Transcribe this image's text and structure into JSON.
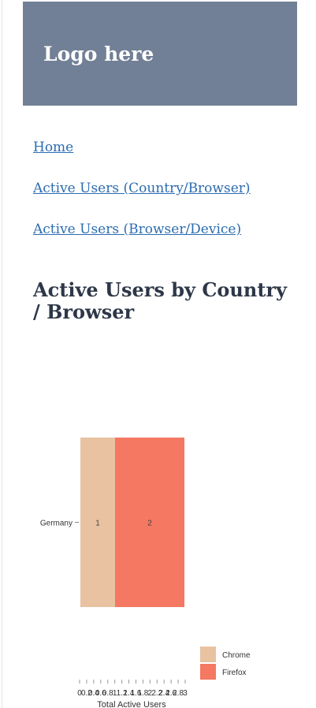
{
  "header": {
    "logo_text": "Logo here"
  },
  "nav": {
    "items": [
      {
        "label": "Home"
      },
      {
        "label": "Active Users (Country/Browser)"
      },
      {
        "label": "Active Users (Browser/Device)"
      }
    ]
  },
  "page": {
    "title": "Active Users by Country / Browser"
  },
  "colors": {
    "header_bg": "#718096",
    "link": "#2b6cb0",
    "chrome": "#e8c2a1",
    "firefox": "#f47862"
  },
  "chart_data": {
    "type": "bar",
    "orientation": "horizontal",
    "stacked": true,
    "categories": [
      "Germany"
    ],
    "series": [
      {
        "name": "Chrome",
        "values": [
          1
        ],
        "color": "#e8c2a1"
      },
      {
        "name": "Firefox",
        "values": [
          2
        ],
        "color": "#f47862"
      }
    ],
    "data_labels": [
      "1",
      "2"
    ],
    "xlabel": "Total Active Users",
    "ylabel": "",
    "xlim": [
      0,
      3
    ],
    "x_ticks": [
      "0",
      "0.2",
      "0.4",
      "0.6",
      "0.8",
      "1",
      "1.2",
      "1.4",
      "1.6",
      "1.8",
      "2",
      "2.2",
      "2.4",
      "2.6",
      "2.8",
      "3"
    ],
    "legend_position": "bottom-right",
    "grid": false
  }
}
